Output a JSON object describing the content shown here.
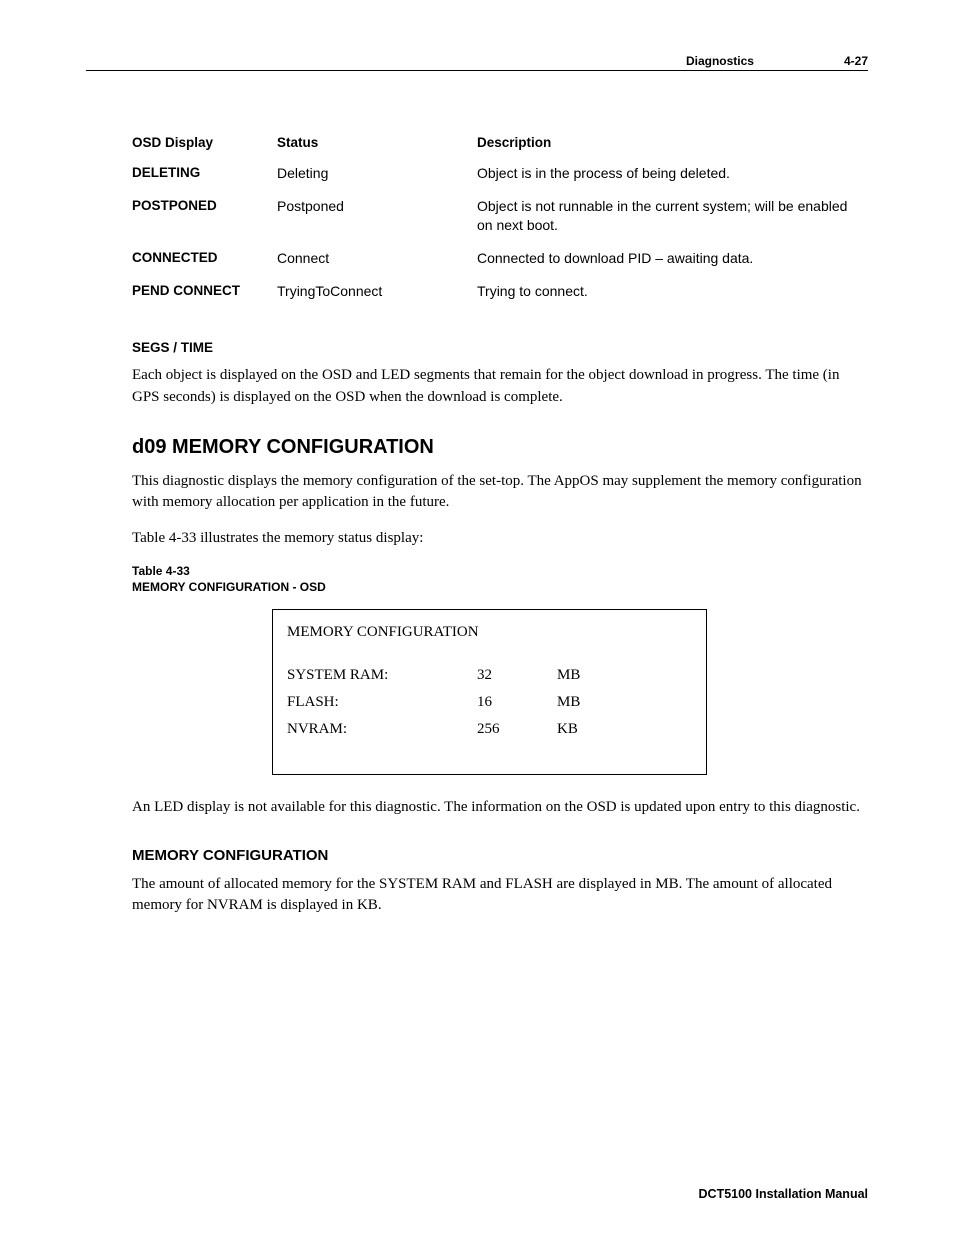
{
  "header": {
    "section": "Diagnostics",
    "page": "4-27"
  },
  "status_table": {
    "headers": {
      "osd": "OSD Display",
      "status": "Status",
      "desc": "Description"
    },
    "rows": [
      {
        "osd": "DELETING",
        "status": "Deleting",
        "desc": "Object is in the process of being deleted."
      },
      {
        "osd": "POSTPONED",
        "status": "Postponed",
        "desc": "Object is not runnable in the current system; will be enabled on next boot."
      },
      {
        "osd": "CONNECTED",
        "status": "Connect",
        "desc": "Connected to download PID – awaiting data."
      },
      {
        "osd": "PEND CONNECT",
        "status": "TryingToConnect",
        "desc": "Trying to connect."
      }
    ]
  },
  "segs_time": {
    "heading": "SEGS / TIME",
    "text": "Each object is displayed on the OSD and LED segments that remain for the object download in progress. The time (in GPS seconds) is displayed on the OSD when the download is complete."
  },
  "d09": {
    "heading": "d09 MEMORY CONFIGURATION",
    "p1": "This diagnostic displays the memory configuration of the set-top. The AppOS may supplement the memory configuration with memory allocation per application in the future.",
    "p2": "Table 4-33 illustrates the memory status display:",
    "table_caption_l1": "Table 4-33",
    "table_caption_l2": "MEMORY CONFIGURATION - OSD",
    "osd_box": {
      "title": "MEMORY CONFIGURATION",
      "rows": [
        {
          "label": "SYSTEM RAM:",
          "value": "32",
          "unit": "MB"
        },
        {
          "label": "FLASH:",
          "value": "16",
          "unit": "MB"
        },
        {
          "label": "NVRAM:",
          "value": "256",
          "unit": "KB"
        }
      ]
    },
    "p3": "An LED display is not available for this diagnostic. The information on the OSD is updated upon entry to this diagnostic."
  },
  "memconf": {
    "heading": "MEMORY CONFIGURATION",
    "text": "The amount of allocated memory for the SYSTEM RAM and FLASH are displayed in MB. The amount of allocated memory for NVRAM is displayed in KB."
  },
  "footer": "DCT5100 Installation Manual"
}
